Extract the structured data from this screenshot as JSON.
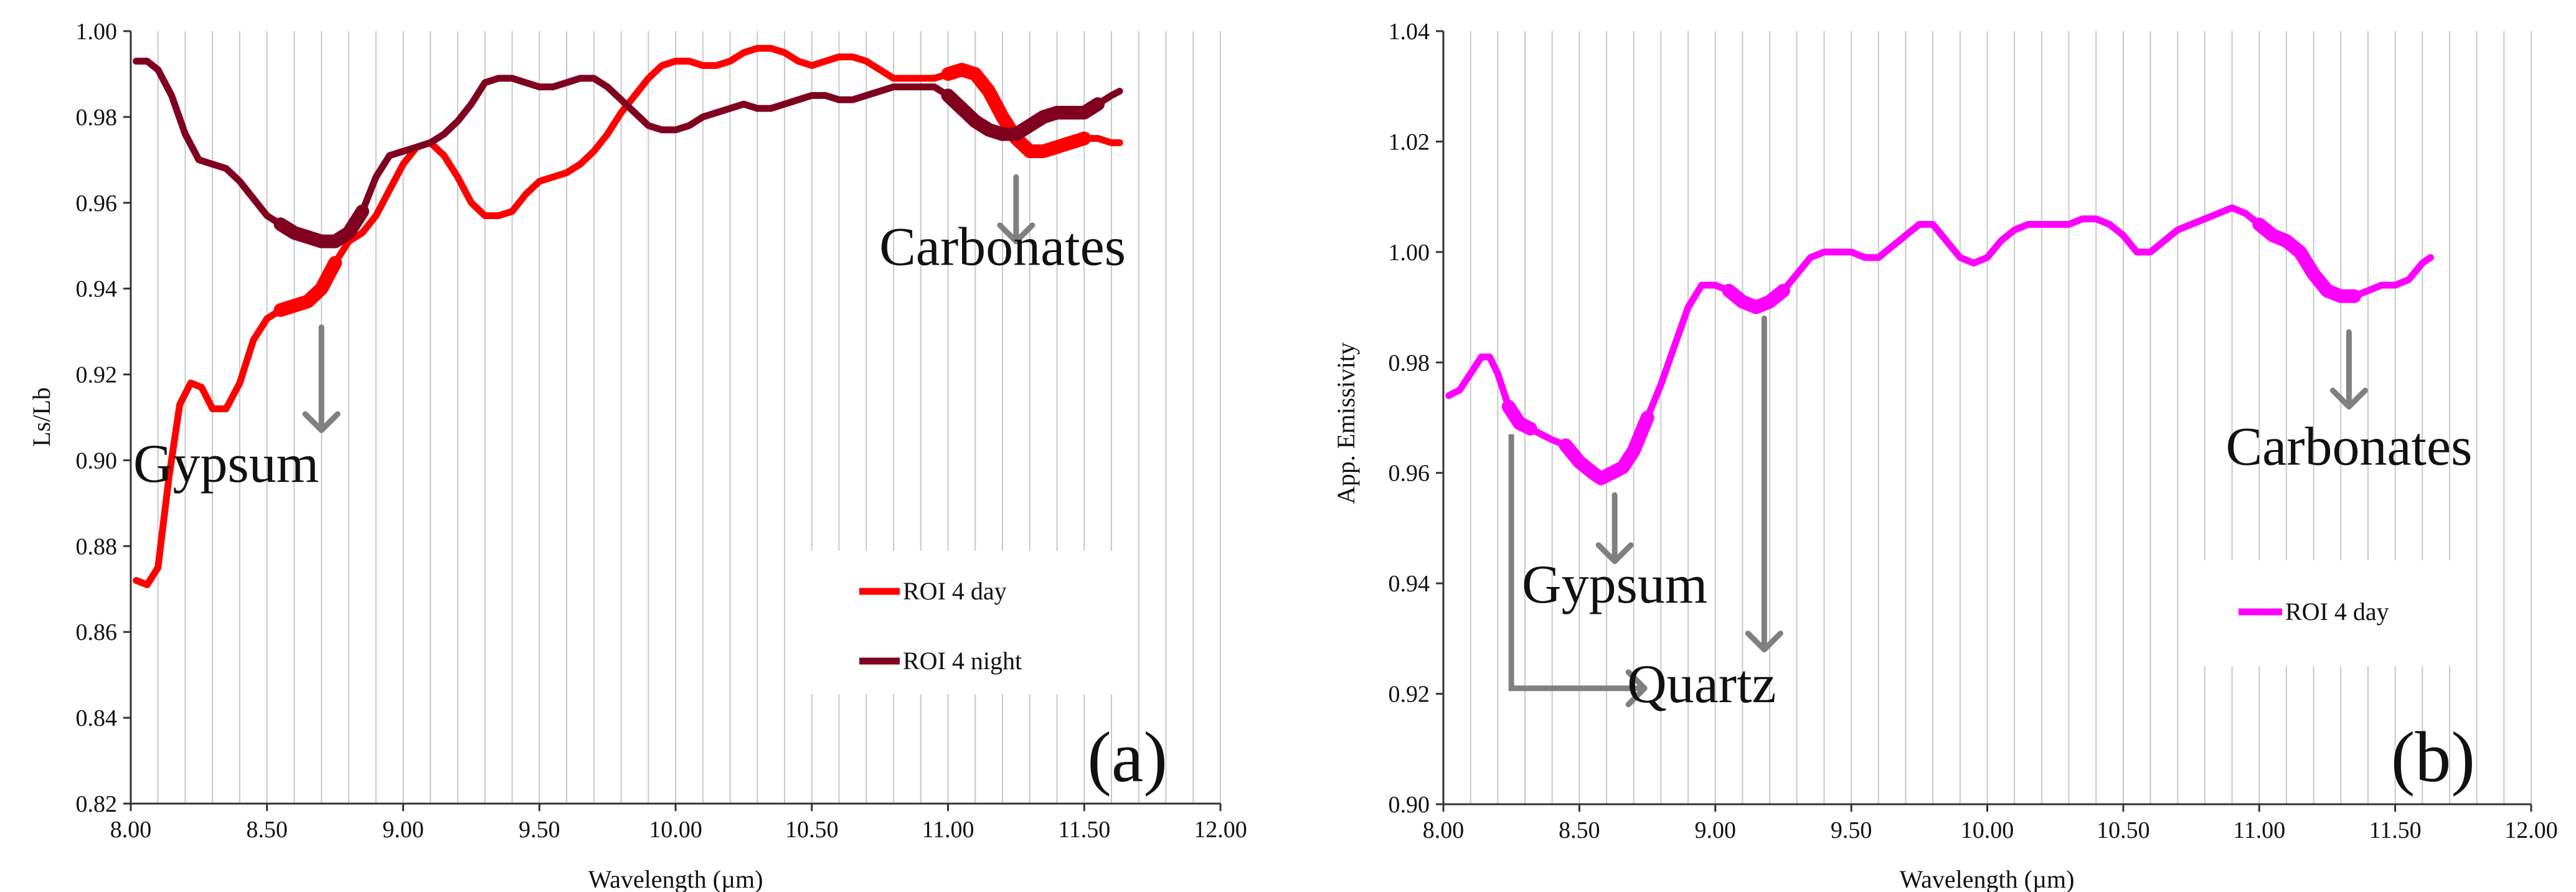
{
  "chart_data": [
    {
      "panel": "a",
      "type": "line",
      "panel_label": "(a)",
      "xlabel": "Wavelength (µm)",
      "ylabel": "Ls/Lb",
      "xlim": [
        8.0,
        12.0
      ],
      "ylim": [
        0.82,
        1.0
      ],
      "xticks": [
        "8.00",
        "8.50",
        "9.00",
        "9.50",
        "10.00",
        "10.50",
        "11.00",
        "11.50",
        "12.00"
      ],
      "yticks": [
        "0.82",
        "0.84",
        "0.86",
        "0.88",
        "0.90",
        "0.92",
        "0.94",
        "0.96",
        "0.98",
        "1.00"
      ],
      "xtick_values": [
        8.0,
        8.5,
        9.0,
        9.5,
        10.0,
        10.5,
        11.0,
        11.5,
        12.0
      ],
      "ytick_values": [
        0.82,
        0.84,
        0.86,
        0.88,
        0.9,
        0.92,
        0.94,
        0.96,
        0.98,
        1.0
      ],
      "series": [
        {
          "name": "ROI 4 day",
          "color": "#ff0000",
          "x": [
            8.02,
            8.06,
            8.1,
            8.14,
            8.18,
            8.22,
            8.26,
            8.3,
            8.35,
            8.4,
            8.45,
            8.5,
            8.55,
            8.6,
            8.65,
            8.7,
            8.75,
            8.8,
            8.85,
            8.9,
            8.95,
            9.0,
            9.05,
            9.1,
            9.15,
            9.2,
            9.25,
            9.3,
            9.35,
            9.4,
            9.45,
            9.5,
            9.55,
            9.6,
            9.65,
            9.7,
            9.75,
            9.8,
            9.85,
            9.9,
            9.95,
            10.0,
            10.05,
            10.1,
            10.15,
            10.2,
            10.25,
            10.3,
            10.35,
            10.4,
            10.45,
            10.5,
            10.55,
            10.6,
            10.65,
            10.7,
            10.75,
            10.8,
            10.85,
            10.9,
            10.95,
            11.0,
            11.05,
            11.1,
            11.15,
            11.2,
            11.25,
            11.3,
            11.35,
            11.4,
            11.45,
            11.5,
            11.55,
            11.6,
            11.63
          ],
          "values": [
            0.872,
            0.871,
            0.875,
            0.896,
            0.913,
            0.918,
            0.917,
            0.912,
            0.912,
            0.918,
            0.928,
            0.933,
            0.935,
            0.936,
            0.937,
            0.94,
            0.946,
            0.951,
            0.953,
            0.957,
            0.963,
            0.969,
            0.973,
            0.974,
            0.971,
            0.966,
            0.96,
            0.957,
            0.957,
            0.958,
            0.962,
            0.965,
            0.966,
            0.967,
            0.969,
            0.972,
            0.976,
            0.981,
            0.985,
            0.989,
            0.992,
            0.993,
            0.993,
            0.992,
            0.992,
            0.993,
            0.995,
            0.996,
            0.996,
            0.995,
            0.993,
            0.992,
            0.993,
            0.994,
            0.994,
            0.993,
            0.991,
            0.989,
            0.989,
            0.989,
            0.989,
            0.99,
            0.991,
            0.99,
            0.986,
            0.98,
            0.975,
            0.972,
            0.972,
            0.973,
            0.974,
            0.975,
            0.975,
            0.974,
            0.974
          ],
          "highlight_ranges": [
            [
              8.55,
              8.75
            ],
            [
              11.0,
              11.5
            ]
          ]
        },
        {
          "name": "ROI 4 night",
          "color": "#800020",
          "x": [
            8.02,
            8.06,
            8.1,
            8.15,
            8.2,
            8.25,
            8.3,
            8.35,
            8.4,
            8.45,
            8.5,
            8.55,
            8.6,
            8.65,
            8.7,
            8.75,
            8.8,
            8.85,
            8.9,
            8.95,
            9.0,
            9.05,
            9.1,
            9.15,
            9.2,
            9.25,
            9.3,
            9.35,
            9.4,
            9.45,
            9.5,
            9.55,
            9.6,
            9.65,
            9.7,
            9.75,
            9.8,
            9.85,
            9.9,
            9.95,
            10.0,
            10.05,
            10.1,
            10.15,
            10.2,
            10.25,
            10.3,
            10.35,
            10.4,
            10.45,
            10.5,
            10.55,
            10.6,
            10.65,
            10.7,
            10.75,
            10.8,
            10.85,
            10.9,
            10.95,
            11.0,
            11.05,
            11.1,
            11.15,
            11.2,
            11.25,
            11.3,
            11.35,
            11.4,
            11.45,
            11.5,
            11.55,
            11.6,
            11.63
          ],
          "values": [
            0.993,
            0.993,
            0.991,
            0.985,
            0.976,
            0.97,
            0.969,
            0.968,
            0.965,
            0.961,
            0.957,
            0.955,
            0.953,
            0.952,
            0.951,
            0.951,
            0.953,
            0.958,
            0.966,
            0.971,
            0.972,
            0.973,
            0.974,
            0.976,
            0.979,
            0.983,
            0.988,
            0.989,
            0.989,
            0.988,
            0.987,
            0.987,
            0.988,
            0.989,
            0.989,
            0.987,
            0.984,
            0.981,
            0.978,
            0.977,
            0.977,
            0.978,
            0.98,
            0.981,
            0.982,
            0.983,
            0.982,
            0.982,
            0.983,
            0.984,
            0.985,
            0.985,
            0.984,
            0.984,
            0.985,
            0.986,
            0.987,
            0.987,
            0.987,
            0.987,
            0.985,
            0.982,
            0.979,
            0.977,
            0.976,
            0.976,
            0.978,
            0.98,
            0.981,
            0.981,
            0.981,
            0.983,
            0.985,
            0.986
          ],
          "highlight_ranges": [
            [
              8.55,
              8.85
            ],
            [
              11.0,
              11.55
            ]
          ]
        }
      ],
      "legend": [
        {
          "label": "ROI 4 day",
          "color": "#ff0000"
        },
        {
          "label": "ROI 4 night",
          "color": "#800020"
        }
      ],
      "legend_position": "bottom-right",
      "annotations": [
        {
          "text": "Gypsum",
          "x": 8.35,
          "y": 0.895,
          "arrow_x": 8.7,
          "arrow_from": 0.931,
          "arrow_to": 0.907
        },
        {
          "text": "Carbonates",
          "x": 11.2,
          "y": 0.9455,
          "arrow_x": 11.25,
          "arrow_from": 0.966,
          "arrow_to": 0.951
        }
      ]
    },
    {
      "panel": "b",
      "type": "line",
      "panel_label": "(b)",
      "xlabel": "Wavelength (µm)",
      "ylabel": "App. Emissivity",
      "xlim": [
        8.0,
        12.0
      ],
      "ylim": [
        0.9,
        1.04
      ],
      "xticks": [
        "8.00",
        "8.50",
        "9.00",
        "9.50",
        "10.00",
        "10.50",
        "11.00",
        "11.50",
        "12.00"
      ],
      "yticks": [
        "0.90",
        "0.92",
        "0.94",
        "0.96",
        "0.98",
        "1.00",
        "1.02",
        "1.04"
      ],
      "xtick_values": [
        8.0,
        8.5,
        9.0,
        9.5,
        10.0,
        10.5,
        11.0,
        11.5,
        12.0
      ],
      "ytick_values": [
        0.9,
        0.92,
        0.94,
        0.96,
        0.98,
        1.0,
        1.02,
        1.04
      ],
      "series": [
        {
          "name": "ROI 4 day",
          "color": "#ff00ff",
          "x": [
            8.02,
            8.06,
            8.1,
            8.14,
            8.17,
            8.2,
            8.24,
            8.28,
            8.32,
            8.36,
            8.4,
            8.45,
            8.5,
            8.55,
            8.58,
            8.62,
            8.66,
            8.7,
            8.75,
            8.8,
            8.85,
            8.9,
            8.95,
            9.0,
            9.05,
            9.1,
            9.15,
            9.2,
            9.25,
            9.3,
            9.35,
            9.4,
            9.45,
            9.5,
            9.55,
            9.6,
            9.65,
            9.7,
            9.75,
            9.8,
            9.85,
            9.9,
            9.95,
            10.0,
            10.05,
            10.1,
            10.15,
            10.2,
            10.25,
            10.3,
            10.35,
            10.4,
            10.45,
            10.5,
            10.55,
            10.6,
            10.65,
            10.7,
            10.75,
            10.8,
            10.85,
            10.9,
            10.95,
            11.0,
            11.05,
            11.1,
            11.15,
            11.2,
            11.25,
            11.3,
            11.35,
            11.4,
            11.45,
            11.5,
            11.55,
            11.6,
            11.63
          ],
          "values": [
            0.974,
            0.975,
            0.978,
            0.981,
            0.981,
            0.978,
            0.972,
            0.969,
            0.968,
            0.967,
            0.966,
            0.965,
            0.962,
            0.96,
            0.959,
            0.96,
            0.961,
            0.964,
            0.97,
            0.976,
            0.983,
            0.99,
            0.994,
            0.994,
            0.993,
            0.991,
            0.99,
            0.991,
            0.993,
            0.996,
            0.999,
            1.0,
            1.0,
            1.0,
            0.999,
            0.999,
            1.001,
            1.003,
            1.005,
            1.005,
            1.002,
            0.999,
            0.998,
            0.999,
            1.002,
            1.004,
            1.005,
            1.005,
            1.005,
            1.005,
            1.006,
            1.006,
            1.005,
            1.003,
            1.0,
            1.0,
            1.002,
            1.004,
            1.005,
            1.006,
            1.007,
            1.008,
            1.007,
            1.005,
            1.003,
            1.002,
            1.0,
            0.996,
            0.993,
            0.992,
            0.992,
            0.993,
            0.994,
            0.994,
            0.995,
            0.998,
            0.999
          ],
          "highlight_ranges": [
            [
              8.22,
              8.35
            ],
            [
              8.45,
              8.75
            ],
            [
              9.05,
              9.25
            ],
            [
              10.97,
              11.35
            ]
          ]
        }
      ],
      "legend": [
        {
          "label": "ROI 4 day",
          "color": "#ff00ff"
        }
      ],
      "legend_position": "bottom-right",
      "annotations": [
        {
          "text": "Gypsum",
          "x": 8.63,
          "y": 0.9365,
          "arrow_x": 8.63,
          "arrow_from": 0.956,
          "arrow_to": 0.944
        },
        {
          "text": "Carbonates",
          "x": 11.33,
          "y": 0.9615,
          "arrow_x": 11.33,
          "arrow_from": 0.9855,
          "arrow_to": 0.972
        },
        {
          "text": "Quartz",
          "x": 8.95,
          "y": 0.9185,
          "bracket": [
            8.25,
            0.967,
            8.25,
            0.921,
            8.74,
            0.921
          ]
        },
        {
          "text": "",
          "arrow_x": 9.18,
          "arrow_from": 0.988,
          "arrow_to": 0.928
        }
      ]
    }
  ]
}
